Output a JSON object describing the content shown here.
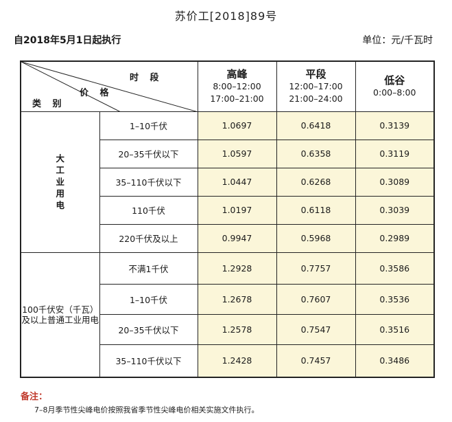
{
  "header": {
    "doc_number": "苏价工[2018]89号",
    "effective": "自2018年5月1日起执行",
    "unit": "单位：元/千瓦时"
  },
  "table": {
    "corner": {
      "period_label": "时 段",
      "price_label": "价 格",
      "category_label": "类 别"
    },
    "periods": [
      {
        "name": "高峰",
        "times": [
          "8:00–12:00",
          "17:00–21:00"
        ]
      },
      {
        "name": "平段",
        "times": [
          "12:00–17:00",
          "21:00–24:00"
        ]
      },
      {
        "name": "低谷",
        "times": [
          "0:00–8:00"
        ]
      }
    ],
    "groups": [
      {
        "category": "大工业用电",
        "rows": [
          {
            "voltage": "1–10千伏",
            "values": [
              "1.0697",
              "0.6418",
              "0.3139"
            ]
          },
          {
            "voltage": "20–35千伏以下",
            "values": [
              "1.0597",
              "0.6358",
              "0.3119"
            ]
          },
          {
            "voltage": "35–110千伏以下",
            "values": [
              "1.0447",
              "0.6268",
              "0.3089"
            ]
          },
          {
            "voltage": "110千伏",
            "values": [
              "1.0197",
              "0.6118",
              "0.3039"
            ]
          },
          {
            "voltage": "220千伏及以上",
            "values": [
              "0.9947",
              "0.5968",
              "0.2989"
            ]
          }
        ]
      },
      {
        "category_lines": [
          "100千伏安（千瓦）",
          "及以上普通工业用电"
        ],
        "rows": [
          {
            "voltage": "不满1千伏",
            "values": [
              "1.2928",
              "0.7757",
              "0.3586"
            ]
          },
          {
            "voltage": "1–10千伏",
            "values": [
              "1.2678",
              "0.7607",
              "0.3536"
            ]
          },
          {
            "voltage": "20–35千伏以下",
            "values": [
              "1.2578",
              "0.7547",
              "0.3516"
            ]
          },
          {
            "voltage": "35–110千伏以下",
            "values": [
              "1.2428",
              "0.7457",
              "0.3486"
            ]
          }
        ]
      }
    ]
  },
  "notes": {
    "title": "备注：",
    "text": "7–8月季节性尖峰电价按照我省季节性尖峰电价相关实施文件执行。"
  }
}
